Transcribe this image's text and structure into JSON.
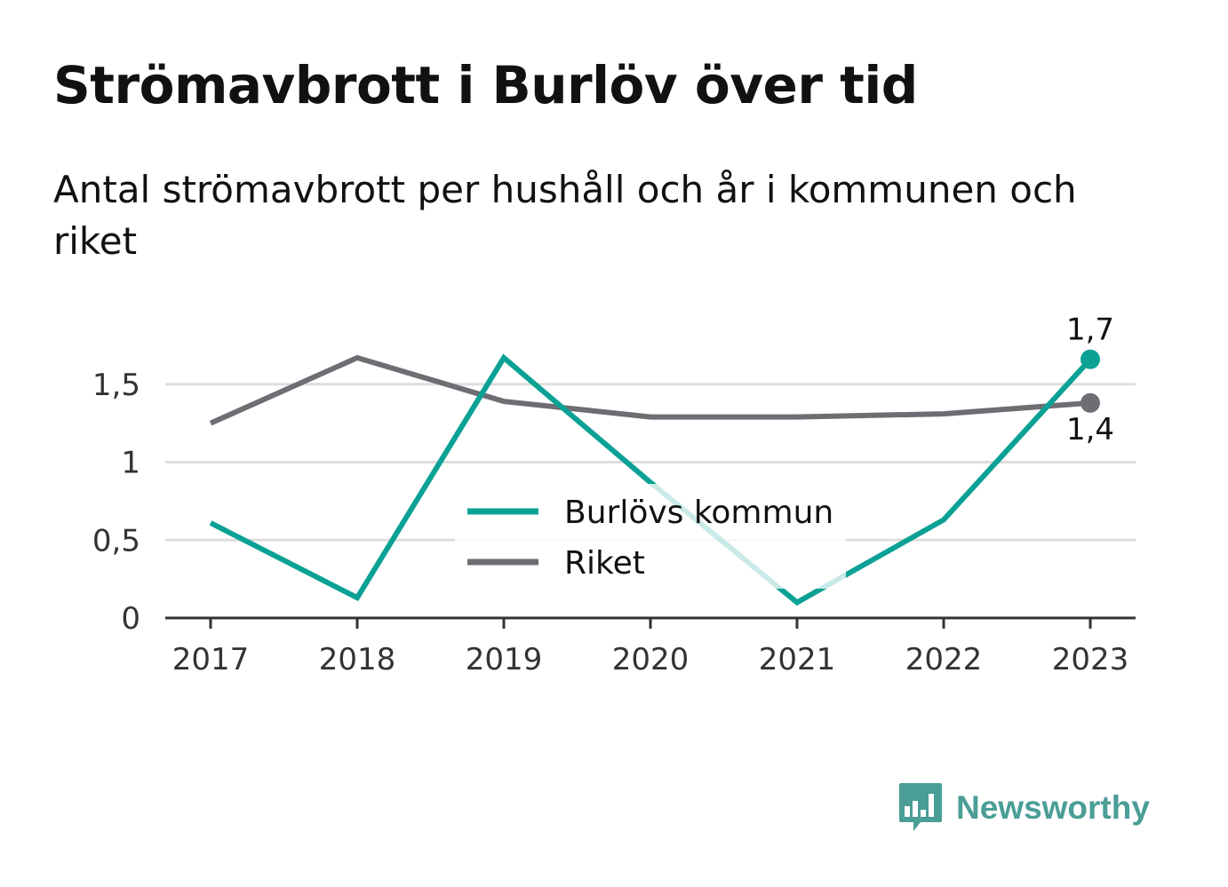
{
  "title": "Strömavbrott i Burlöv över tid",
  "subtitle": "Antal strömavbrott per hushåll och år i kommunen och riket",
  "brand": {
    "name": "Newsworthy",
    "logo_icon": "bar-chart-speech-bubble-icon",
    "color": "#4a9e96"
  },
  "chart_data": {
    "type": "line",
    "title": "",
    "xlabel": "",
    "ylabel": "",
    "categories": [
      "2017",
      "2018",
      "2019",
      "2020",
      "2021",
      "2022",
      "2023"
    ],
    "ylim": [
      0,
      1.8
    ],
    "yticks": [
      {
        "value": 0,
        "label": "0"
      },
      {
        "value": 0.5,
        "label": "0,5"
      },
      {
        "value": 1,
        "label": "1"
      },
      {
        "value": 1.5,
        "label": "1,5"
      }
    ],
    "grid": true,
    "legend_position": "center",
    "series": [
      {
        "name": "Burlövs kommun",
        "color": "#0ca195",
        "values": [
          0.61,
          0.13,
          1.67,
          0.87,
          0.1,
          0.63,
          1.66
        ],
        "end_label": "1,7",
        "end_label_position": "above"
      },
      {
        "name": "Riket",
        "color": "#6e6d74",
        "values": [
          1.25,
          1.67,
          1.39,
          1.29,
          1.29,
          1.31,
          1.38
        ],
        "end_label": "1,4",
        "end_label_position": "below"
      }
    ]
  }
}
